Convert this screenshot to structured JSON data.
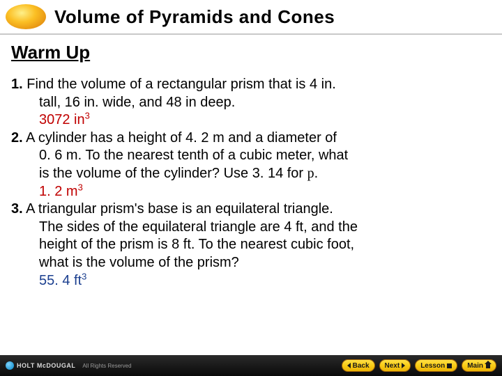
{
  "header": {
    "title": "Volume of Pyramids and Cones",
    "oval_gradient": [
      "#fef08a",
      "#fbbf24",
      "#d97706"
    ]
  },
  "section": {
    "title": "Warm Up"
  },
  "problems": [
    {
      "num": "1.",
      "text_line1": "Find the volume of a rectangular prism that is 4 in.",
      "text_line2": "tall, 16 in. wide, and 48 in deep.",
      "answer_value": "3072 in",
      "answer_exp": "3",
      "answer_color": "#c00000"
    },
    {
      "num": "2.",
      "text_line1": "A cylinder has a height of 4. 2 m and a diameter of",
      "text_line2": "0. 6 m. To the nearest tenth of a cubic meter, what",
      "text_line3": "is the volume of the cylinder? Use 3. 14 for ",
      "pi_symbol": "p",
      "text_line3_end": ".",
      "answer_value": "1. 2 m",
      "answer_exp": "3",
      "answer_color": "#c00000"
    },
    {
      "num": "3.",
      "text_line1": "A triangular prism's base is an equilateral triangle.",
      "text_line2": "The sides of the equilateral triangle are 4 ft, and the",
      "text_line3": "height of the prism is 8 ft. To the nearest cubic foot,",
      "text_line4": "what is the volume of the prism?",
      "answer_value": "55. 4 ft",
      "answer_exp": "3",
      "answer_color": "#1b3f8f"
    }
  ],
  "footer": {
    "brand": "HOLT McDOUGAL",
    "copyright": "All Rights Reserved",
    "brand_color": "#dcdcdc",
    "copy_color": "#9a9a9a",
    "bg_gradient": [
      "#2a2a2a",
      "#0a0a0a"
    ],
    "nav": {
      "back": "Back",
      "next": "Next",
      "lesson": "Lesson",
      "main": "Main",
      "btn_gradient": [
        "#fde047",
        "#facc15",
        "#eab308"
      ],
      "btn_border": "#a16207",
      "btn_text_color": "#1a1a1a"
    }
  },
  "colors": {
    "divider": "#c9c9c9",
    "text": "#000000",
    "background": "#ffffff"
  },
  "typography": {
    "header_fontsize": 26,
    "section_fontsize": 26,
    "body_fontsize": 20,
    "footer_brand_fontsize": 9,
    "footer_copy_fontsize": 8,
    "nav_btn_fontsize": 10
  }
}
